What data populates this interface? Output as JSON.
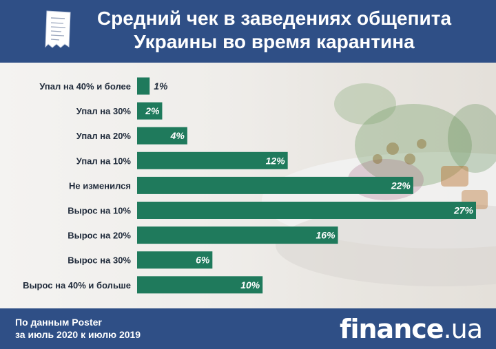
{
  "header": {
    "title_line1": "Средний чек в заведениях общепита",
    "title_line2": "Украины во время карантина"
  },
  "footer": {
    "source_line1": "По данным Poster",
    "source_line2": "за июль 2020 к июлю 2019",
    "logo_main": "finance",
    "logo_suffix": ".ua"
  },
  "colors": {
    "header_bg": "#2f4f86",
    "bar": "#1f7a5c",
    "value_label": "#ffffff",
    "outside_label": "#1f2a3a"
  },
  "chart_data": {
    "type": "bar",
    "orientation": "horizontal",
    "title": "Средний чек в заведениях общепита Украины во время карантина",
    "categories": [
      "Упал на 40% и более",
      "Упал на 30%",
      "Упал на 20%",
      "Упал на 10%",
      "Не изменился",
      "Вырос на 10%",
      "Вырос на 20%",
      "Вырос на 30%",
      "Вырос на 40% и больше"
    ],
    "values": [
      1,
      2,
      4,
      12,
      22,
      27,
      16,
      6,
      10
    ],
    "value_labels": [
      "1%",
      "2%",
      "4%",
      "12%",
      "22%",
      "27%",
      "16%",
      "6%",
      "10%"
    ],
    "unit": "%",
    "xlim": [
      0,
      27
    ],
    "grid": false,
    "legend": "none"
  }
}
